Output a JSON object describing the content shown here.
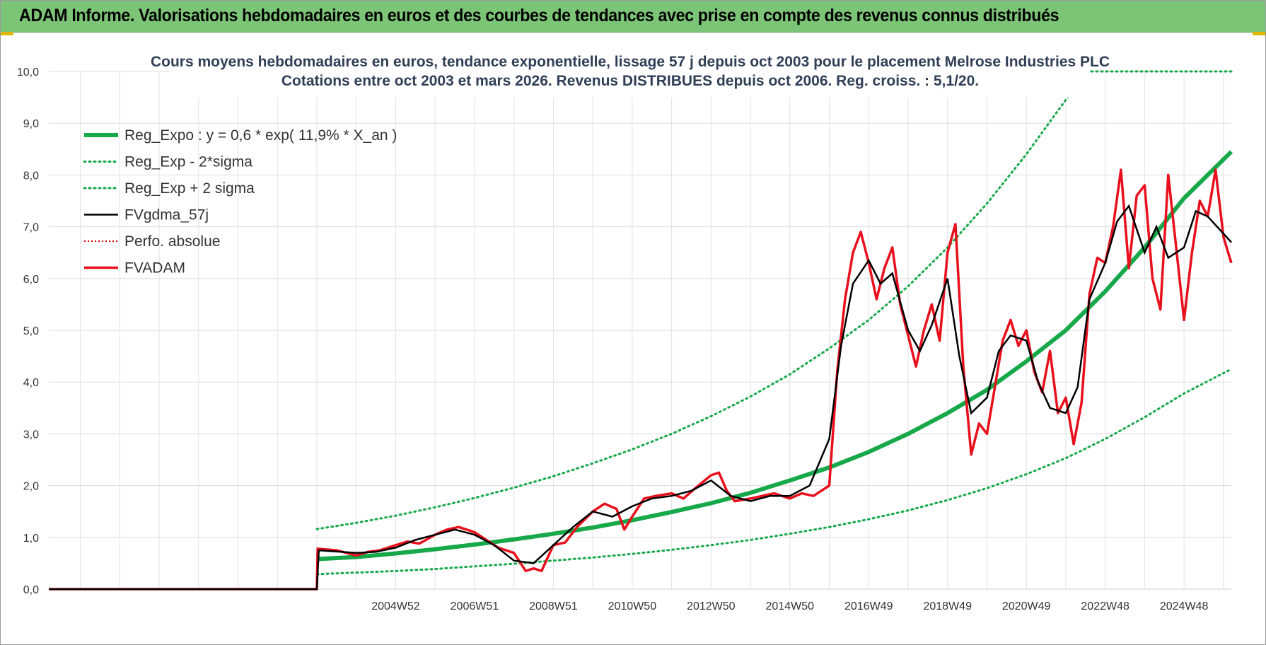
{
  "header": {
    "title": "ADAM Informe. Valorisations hebdomadaires en euros et des courbes de tendances avec prise en compte des revenus connus distribués"
  },
  "chart_data": {
    "type": "line",
    "title_line1": "Cours moyens hebdomadaires en euros, tendance exponentielle, lissage 57 j depuis oct 2003 pour le placement Melrose Industries PLC",
    "title_line2": "Cotations entre oct 2003 et mars 2026.  Revenus DISTRIBUES depuis oct 2006. Reg. croiss. : 5,1/20.",
    "x_tick_labels": [
      "2004W52",
      "2006W51",
      "2008W51",
      "2010W50",
      "2012W50",
      "2014W50",
      "2016W49",
      "2018W49",
      "2020W49",
      "2022W48",
      "2024W48"
    ],
    "x_tick_years": [
      2005.0,
      2007.0,
      2009.0,
      2011.0,
      2013.0,
      2015.0,
      2017.0,
      2019.0,
      2021.0,
      2023.0,
      2025.0
    ],
    "xlim": [
      1996.2,
      2026.2
    ],
    "ylim": [
      0,
      10
    ],
    "y_ticks": [
      "0,0",
      "1,0",
      "2,0",
      "3,0",
      "4,0",
      "5,0",
      "6,0",
      "7,0",
      "8,0",
      "9,0",
      "10,0"
    ],
    "grid": true,
    "legend_position": "top-left",
    "colors": {
      "reg_expo": "#17a84a",
      "sigma": "#17a84a",
      "fvgdma": "#000000",
      "perfo": "#e00000",
      "fvadam": "#e8101c"
    },
    "series": [
      {
        "name": "Reg_Expo : y = 0,6 * exp( 11,9% *  X_an )",
        "key": "reg_expo",
        "x": [
          2003.0,
          2004.0,
          2005.0,
          2006.0,
          2007.0,
          2008.0,
          2009.0,
          2010.0,
          2011.0,
          2012.0,
          2013.0,
          2014.0,
          2015.0,
          2016.0,
          2017.0,
          2018.0,
          2019.0,
          2020.0,
          2021.0,
          2022.0,
          2023.0,
          2024.0,
          2025.0,
          2026.2
        ],
        "y": [
          0.58,
          0.62,
          0.69,
          0.77,
          0.86,
          0.96,
          1.07,
          1.19,
          1.33,
          1.49,
          1.66,
          1.86,
          2.1,
          2.35,
          2.65,
          3.0,
          3.4,
          3.85,
          4.4,
          5.0,
          5.75,
          6.6,
          7.55,
          8.45
        ]
      },
      {
        "name": "Reg_Exp - 2*sigma",
        "key": "sigma_low",
        "x": [
          2003.0,
          2004.0,
          2005.0,
          2006.0,
          2007.0,
          2008.0,
          2009.0,
          2010.0,
          2011.0,
          2012.0,
          2013.0,
          2014.0,
          2015.0,
          2016.0,
          2017.0,
          2018.0,
          2019.0,
          2020.0,
          2021.0,
          2022.0,
          2023.0,
          2024.0,
          2025.0,
          2026.2
        ],
        "y": [
          0.29,
          0.32,
          0.35,
          0.39,
          0.44,
          0.49,
          0.55,
          0.61,
          0.68,
          0.76,
          0.85,
          0.95,
          1.07,
          1.2,
          1.35,
          1.52,
          1.72,
          1.95,
          2.22,
          2.53,
          2.9,
          3.32,
          3.78,
          4.25
        ]
      },
      {
        "name": "Reg_Exp + 2 sigma",
        "key": "sigma_high",
        "x": [
          2003.0,
          2004.0,
          2005.0,
          2006.0,
          2007.0,
          2008.0,
          2009.0,
          2010.0,
          2011.0,
          2012.0,
          2013.0,
          2014.0,
          2015.0,
          2016.0,
          2017.0,
          2018.0,
          2019.0,
          2020.0,
          2021.0,
          2022.0,
          2022.45
        ],
        "y": [
          1.16,
          1.28,
          1.42,
          1.58,
          1.76,
          1.96,
          2.18,
          2.43,
          2.7,
          3.0,
          3.34,
          3.72,
          4.15,
          4.65,
          5.2,
          5.85,
          6.6,
          7.45,
          8.4,
          9.45,
          9.9
        ]
      },
      {
        "name": "FVgdma_57j",
        "key": "fvgdma",
        "x": [
          1996.2,
          2003.0,
          2003.05,
          2004.0,
          2004.5,
          2005.0,
          2005.5,
          2006.0,
          2006.5,
          2007.0,
          2007.5,
          2008.0,
          2008.5,
          2009.0,
          2009.5,
          2010.0,
          2010.5,
          2011.0,
          2011.5,
          2012.0,
          2012.5,
          2013.0,
          2013.5,
          2014.0,
          2014.5,
          2015.0,
          2015.5,
          2016.0,
          2016.3,
          2016.6,
          2017.0,
          2017.3,
          2017.6,
          2018.0,
          2018.3,
          2018.6,
          2019.0,
          2019.3,
          2019.6,
          2020.0,
          2020.3,
          2020.6,
          2021.0,
          2021.3,
          2021.6,
          2022.0,
          2022.3,
          2022.6,
          2023.0,
          2023.3,
          2023.6,
          2024.0,
          2024.3,
          2024.6,
          2025.0,
          2025.3,
          2025.6,
          2026.2
        ],
        "y": [
          0,
          0,
          0.75,
          0.7,
          0.72,
          0.8,
          0.95,
          1.05,
          1.15,
          1.05,
          0.85,
          0.55,
          0.5,
          0.85,
          1.2,
          1.5,
          1.4,
          1.6,
          1.75,
          1.8,
          1.9,
          2.1,
          1.8,
          1.7,
          1.8,
          1.8,
          2.0,
          2.9,
          4.7,
          5.9,
          6.35,
          5.9,
          6.1,
          5.0,
          4.6,
          5.1,
          6.0,
          4.5,
          3.4,
          3.7,
          4.6,
          4.9,
          4.8,
          4.0,
          3.5,
          3.4,
          3.9,
          5.6,
          6.3,
          7.1,
          7.4,
          6.5,
          7.0,
          6.4,
          6.6,
          7.3,
          7.2,
          6.7
        ]
      },
      {
        "name": "Perfo. absolue",
        "key": "perfo",
        "x": [
          1996.2,
          2003.0
        ],
        "y": [
          0,
          0
        ]
      },
      {
        "name": "FVADAM",
        "key": "fvadam",
        "x": [
          1996.2,
          2003.0,
          2003.02,
          2003.5,
          2004.0,
          2004.3,
          2004.6,
          2005.0,
          2005.3,
          2005.6,
          2006.0,
          2006.3,
          2006.6,
          2007.0,
          2007.3,
          2007.6,
          2008.0,
          2008.3,
          2008.5,
          2008.7,
          2009.0,
          2009.3,
          2009.6,
          2010.0,
          2010.3,
          2010.6,
          2010.8,
          2011.0,
          2011.3,
          2011.6,
          2012.0,
          2012.3,
          2012.6,
          2013.0,
          2013.2,
          2013.4,
          2013.6,
          2014.0,
          2014.3,
          2014.6,
          2015.0,
          2015.3,
          2015.6,
          2016.0,
          2016.2,
          2016.4,
          2016.6,
          2016.8,
          2017.0,
          2017.2,
          2017.4,
          2017.6,
          2017.8,
          2018.0,
          2018.2,
          2018.4,
          2018.6,
          2018.8,
          2019.0,
          2019.2,
          2019.4,
          2019.6,
          2019.8,
          2020.0,
          2020.2,
          2020.4,
          2020.6,
          2020.8,
          2021.0,
          2021.2,
          2021.4,
          2021.6,
          2021.8,
          2022.0,
          2022.2,
          2022.4,
          2022.6,
          2022.8,
          2023.0,
          2023.2,
          2023.4,
          2023.6,
          2023.8,
          2024.0,
          2024.2,
          2024.4,
          2024.6,
          2024.8,
          2025.0,
          2025.2,
          2025.4,
          2025.6,
          2025.8,
          2026.0,
          2026.2
        ],
        "y": [
          0,
          0,
          0.78,
          0.75,
          0.65,
          0.72,
          0.75,
          0.85,
          0.92,
          0.88,
          1.05,
          1.15,
          1.2,
          1.1,
          0.95,
          0.8,
          0.7,
          0.35,
          0.4,
          0.35,
          0.85,
          0.9,
          1.2,
          1.5,
          1.65,
          1.55,
          1.15,
          1.4,
          1.75,
          1.8,
          1.85,
          1.75,
          1.95,
          2.2,
          2.25,
          1.9,
          1.7,
          1.75,
          1.8,
          1.85,
          1.75,
          1.85,
          1.8,
          2.0,
          4.2,
          5.6,
          6.5,
          6.9,
          6.3,
          5.6,
          6.2,
          6.6,
          5.5,
          4.9,
          4.3,
          5.0,
          5.5,
          4.8,
          6.5,
          7.05,
          4.3,
          2.6,
          3.2,
          3.0,
          3.9,
          4.8,
          5.2,
          4.7,
          5.0,
          4.2,
          3.8,
          4.6,
          3.4,
          3.7,
          2.8,
          3.6,
          5.7,
          6.4,
          6.3,
          7.0,
          8.1,
          6.2,
          7.6,
          7.8,
          6.0,
          5.4,
          8.0,
          6.6,
          5.2,
          6.5,
          7.5,
          7.2,
          8.1,
          6.8,
          6.3
        ]
      }
    ]
  }
}
